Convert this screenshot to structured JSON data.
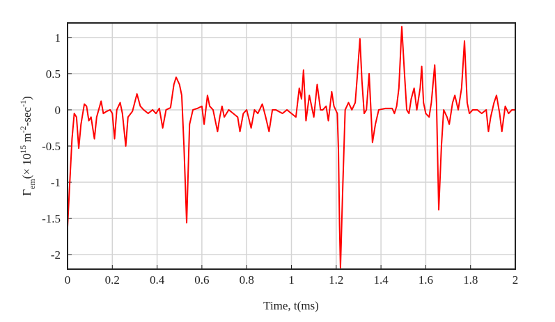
{
  "chart_data": {
    "type": "line",
    "xlabel": "Time, t(ms)",
    "ylabel": [
      "Γ",
      "em",
      "(× 10",
      "15",
      " m",
      "-2",
      "-sec",
      "-1",
      ")"
    ],
    "xlim": [
      0,
      2
    ],
    "ylim": [
      -2.2,
      1.2
    ],
    "xticks": [
      0,
      0.2,
      0.4,
      0.6,
      0.8,
      1,
      1.2,
      1.4,
      1.6,
      1.8,
      2
    ],
    "yticks": [
      -2,
      -1.5,
      -1,
      -0.5,
      0,
      0.5,
      1
    ],
    "grid": true,
    "series": [
      {
        "color": "#ff0000",
        "x": [
          0,
          0.01,
          0.02,
          0.03,
          0.04,
          0.05,
          0.06,
          0.075,
          0.085,
          0.095,
          0.105,
          0.12,
          0.13,
          0.15,
          0.16,
          0.175,
          0.19,
          0.2,
          0.21,
          0.22,
          0.235,
          0.245,
          0.26,
          0.27,
          0.29,
          0.31,
          0.325,
          0.34,
          0.36,
          0.38,
          0.395,
          0.41,
          0.425,
          0.44,
          0.46,
          0.475,
          0.485,
          0.5,
          0.51,
          0.52,
          0.532,
          0.545,
          0.56,
          0.58,
          0.6,
          0.61,
          0.625,
          0.635,
          0.65,
          0.67,
          0.68,
          0.69,
          0.7,
          0.72,
          0.74,
          0.76,
          0.77,
          0.785,
          0.8,
          0.82,
          0.835,
          0.85,
          0.87,
          0.885,
          0.9,
          0.915,
          0.93,
          0.96,
          0.98,
          1.0,
          1.02,
          1.035,
          1.045,
          1.054,
          1.065,
          1.08,
          1.1,
          1.115,
          1.13,
          1.14,
          1.155,
          1.165,
          1.18,
          1.19,
          1.205,
          1.21,
          1.215,
          1.219,
          1.23,
          1.24,
          1.255,
          1.27,
          1.285,
          1.295,
          1.306,
          1.315,
          1.325,
          1.335,
          1.347,
          1.355,
          1.362,
          1.375,
          1.39,
          1.42,
          1.45,
          1.46,
          1.47,
          1.48,
          1.493,
          1.505,
          1.515,
          1.525,
          1.535,
          1.548,
          1.56,
          1.575,
          1.582,
          1.59,
          1.6,
          1.615,
          1.625,
          1.64,
          1.648,
          1.658,
          1.67,
          1.68,
          1.695,
          1.705,
          1.72,
          1.73,
          1.745,
          1.76,
          1.773,
          1.785,
          1.795,
          1.81,
          1.83,
          1.85,
          1.87,
          1.88,
          1.89,
          1.905,
          1.916,
          1.93,
          1.94,
          1.955,
          1.97,
          1.985,
          2.0
        ],
        "values": [
          -1.62,
          -1.0,
          -0.4,
          -0.05,
          -0.1,
          -0.53,
          -0.2,
          0.08,
          0.05,
          -0.15,
          -0.1,
          -0.4,
          -0.1,
          0.12,
          -0.05,
          -0.02,
          0.0,
          -0.05,
          -0.4,
          0.0,
          0.1,
          -0.05,
          -0.5,
          -0.1,
          -0.02,
          0.22,
          0.05,
          0.0,
          -0.05,
          0.0,
          -0.05,
          0.02,
          -0.25,
          0.0,
          0.03,
          0.35,
          0.45,
          0.35,
          0.2,
          -0.5,
          -1.56,
          -0.2,
          0.0,
          0.02,
          0.05,
          -0.2,
          0.2,
          0.05,
          0.0,
          -0.3,
          -0.1,
          0.05,
          -0.1,
          0.0,
          -0.05,
          -0.1,
          -0.3,
          -0.05,
          0.0,
          -0.25,
          0.0,
          -0.05,
          0.08,
          -0.1,
          -0.3,
          0.0,
          0.0,
          -0.05,
          0.0,
          -0.05,
          -0.1,
          0.3,
          0.15,
          0.55,
          -0.15,
          0.2,
          -0.1,
          0.35,
          0.0,
          0.0,
          0.05,
          -0.15,
          0.25,
          0.05,
          -0.05,
          -0.55,
          -1.6,
          -2.18,
          -1.0,
          0.0,
          0.1,
          0.0,
          0.1,
          0.5,
          0.98,
          0.4,
          -0.05,
          0.0,
          0.5,
          0.0,
          -0.45,
          -0.2,
          0.0,
          0.02,
          0.02,
          -0.05,
          0.05,
          0.3,
          1.15,
          0.5,
          0.0,
          -0.05,
          0.15,
          0.3,
          0.0,
          0.3,
          0.6,
          0.1,
          -0.05,
          -0.1,
          0.1,
          0.62,
          0.1,
          -1.38,
          -0.5,
          0.0,
          -0.1,
          -0.2,
          0.1,
          0.2,
          0.0,
          0.3,
          0.95,
          0.1,
          -0.05,
          0.0,
          0.0,
          -0.05,
          0.0,
          -0.3,
          -0.1,
          0.1,
          0.2,
          -0.05,
          -0.3,
          0.05,
          -0.05,
          0.0,
          0.0
        ]
      }
    ]
  }
}
